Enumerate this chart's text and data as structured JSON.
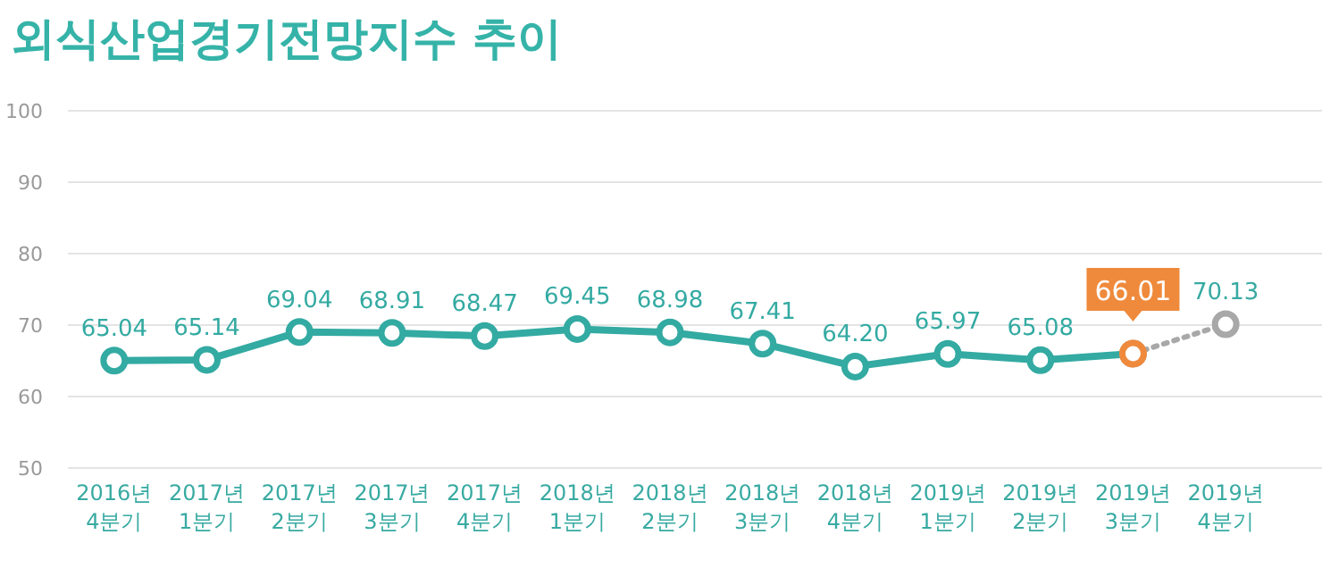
{
  "chart_data": {
    "type": "line",
    "title": "외식산업경기전망지수 추이",
    "categories": [
      "2016년 4분기",
      "2017년 1분기",
      "2017년 2분기",
      "2017년 3분기",
      "2017년 4분기",
      "2018년 1분기",
      "2018년 2분기",
      "2018년 3분기",
      "2018년 4분기",
      "2019년 1분기",
      "2019년 2분기",
      "2019년 3분기",
      "2019년 4분기"
    ],
    "series": [
      {
        "color": "#33aaa2",
        "colors": [
          "#33aaa2",
          "#33aaa2",
          "#33aaa2",
          "#33aaa2",
          "#33aaa2",
          "#33aaa2",
          "#33aaa2",
          "#33aaa2",
          "#33aaa2",
          "#33aaa2",
          "#33aaa2",
          "#ef8a3c",
          null
        ],
        "values": [
          65.04,
          65.14,
          69.04,
          68.91,
          68.47,
          69.45,
          68.98,
          67.41,
          64.2,
          65.97,
          65.08,
          66.01,
          null
        ],
        "value_labels": [
          "65.04",
          "65.14",
          "69.04",
          "68.91",
          "68.47",
          "69.45",
          "68.98",
          "67.41",
          "64.20",
          "65.97",
          "65.08",
          "66.01",
          null
        ],
        "line_style": "solid"
      },
      {
        "color": "#a8a8a8",
        "values": [
          null,
          null,
          null,
          null,
          null,
          null,
          null,
          null,
          null,
          null,
          null,
          66.01,
          70.13
        ],
        "value_labels": [
          null,
          null,
          null,
          null,
          null,
          null,
          null,
          null,
          null,
          null,
          null,
          null,
          "70.13"
        ],
        "line_style": "dotted"
      }
    ],
    "ylim": [
      50,
      100
    ],
    "yticks": [
      50,
      60,
      70,
      80,
      90,
      100
    ],
    "grid": "y",
    "marker": "circle"
  }
}
